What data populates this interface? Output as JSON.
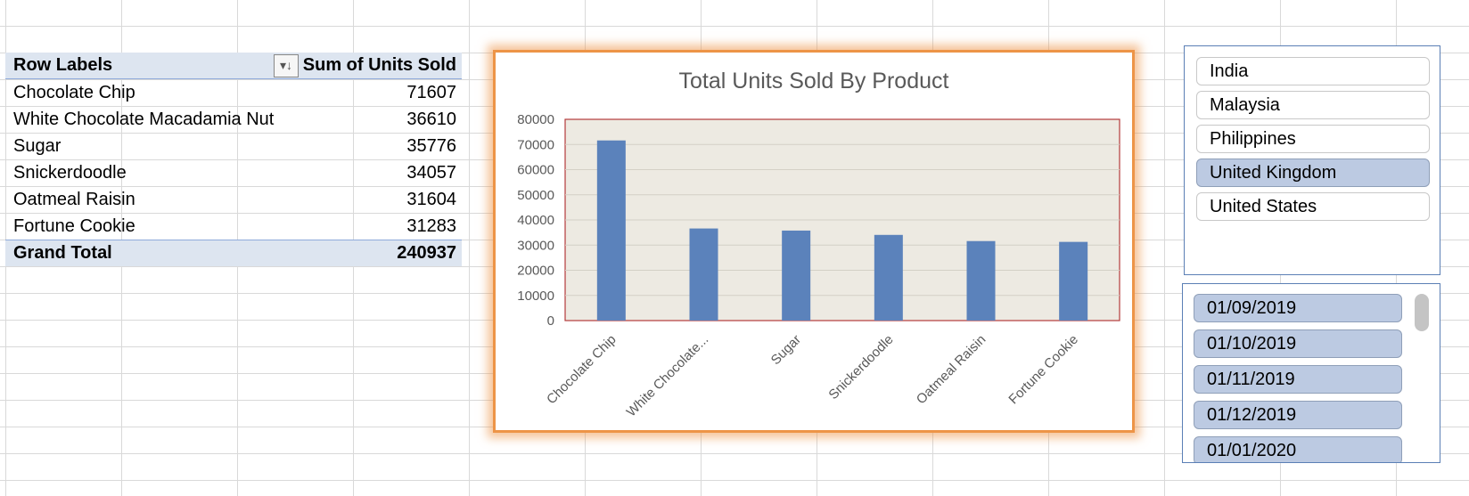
{
  "pivot": {
    "header_label": "Row Labels",
    "header_value": "Sum of Units Sold",
    "rows": [
      {
        "label": "Chocolate Chip",
        "value": "71607"
      },
      {
        "label": "White Chocolate Macadamia Nut",
        "value": "36610"
      },
      {
        "label": "Sugar",
        "value": "35776"
      },
      {
        "label": "Snickerdoodle",
        "value": "34057"
      },
      {
        "label": "Oatmeal Raisin",
        "value": "31604"
      },
      {
        "label": "Fortune Cookie",
        "value": "31283"
      }
    ],
    "total_label": "Grand Total",
    "total_value": "240937"
  },
  "chart_data": {
    "type": "bar",
    "title": "Total Units Sold By Product",
    "categories": [
      "Chocolate Chip",
      "White Chocolate...",
      "Sugar",
      "Snickerdoodle",
      "Oatmeal Raisin",
      "Fortune Cookie"
    ],
    "values": [
      71607,
      36610,
      35776,
      34057,
      31604,
      31283
    ],
    "ylim": [
      0,
      80000
    ],
    "yticks": [
      0,
      10000,
      20000,
      30000,
      40000,
      50000,
      60000,
      70000,
      80000
    ],
    "grid": true,
    "bar_color": "#5b82bb",
    "plot_bg": "#edeae2",
    "plot_border": "#b33b3b"
  },
  "slicer_country": {
    "items": [
      {
        "label": "India",
        "selected": false
      },
      {
        "label": "Malaysia",
        "selected": false
      },
      {
        "label": "Philippines",
        "selected": false
      },
      {
        "label": "United Kingdom",
        "selected": true
      },
      {
        "label": "United States",
        "selected": false
      }
    ]
  },
  "slicer_date": {
    "items": [
      {
        "label": "01/09/2019",
        "selected": true
      },
      {
        "label": "01/10/2019",
        "selected": true
      },
      {
        "label": "01/11/2019",
        "selected": true
      },
      {
        "label": "01/12/2019",
        "selected": true
      },
      {
        "label": "01/01/2020",
        "selected": true
      }
    ]
  }
}
